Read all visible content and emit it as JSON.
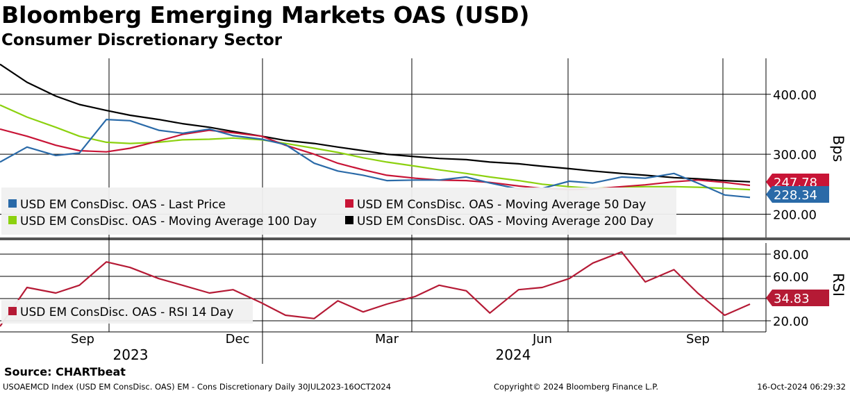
{
  "title": "Bloomberg Emerging Markets OAS (USD)",
  "subtitle": "Consumer Discretionary Sector",
  "source": "Source: CHARTbeat",
  "footer": {
    "left": "USOAEMCD Index (USD EM ConsDisc. OAS) EM - Cons Discretionary  Daily 30JUL2023-16OCT2024",
    "middle": "Copyright© 2024 Bloomberg Finance L.P.",
    "right": "16-Oct-2024 06:29:32"
  },
  "colors": {
    "last_price": "#2a6aa8",
    "ma50": "#c81436",
    "ma100": "#8cd10f",
    "ma200": "#000000",
    "rsi": "#b51a35"
  },
  "chart_data": [
    {
      "type": "line",
      "panel": "upper",
      "ylabel": "Bps",
      "ylim": [
        160,
        460
      ],
      "yticks": [
        "400.00",
        "300.00",
        "200.00"
      ],
      "ytick_values": [
        400,
        300,
        200
      ],
      "x": [
        "2023-07-30",
        "2023-08-15",
        "2023-09-01",
        "2023-09-15",
        "2023-10-01",
        "2023-10-15",
        "2023-11-01",
        "2023-11-15",
        "2023-12-01",
        "2023-12-15",
        "2024-01-01",
        "2024-01-15",
        "2024-02-01",
        "2024-02-15",
        "2024-03-01",
        "2024-03-15",
        "2024-04-01",
        "2024-04-15",
        "2024-05-01",
        "2024-05-15",
        "2024-06-01",
        "2024-06-15",
        "2024-07-01",
        "2024-07-15",
        "2024-08-01",
        "2024-08-15",
        "2024-09-01",
        "2024-09-15",
        "2024-10-01",
        "2024-10-16"
      ],
      "series": [
        {
          "name": "USD EM ConsDisc. OAS - Last Price",
          "values": [
            287,
            312,
            298,
            302,
            358,
            356,
            340,
            335,
            342,
            331,
            325,
            316,
            285,
            272,
            265,
            256,
            257,
            257,
            262,
            252,
            242,
            243,
            255,
            252,
            262,
            260,
            268,
            252,
            232,
            228
          ],
          "last_label": "228.34"
        },
        {
          "name": "USD EM ConsDisc. OAS - Moving Average 50 Day",
          "values": [
            342,
            330,
            315,
            306,
            304,
            310,
            322,
            333,
            340,
            336,
            330,
            315,
            300,
            285,
            274,
            265,
            260,
            257,
            256,
            253,
            247,
            243,
            241,
            242,
            246,
            249,
            254,
            257,
            253,
            248
          ],
          "last_label": "247.78"
        },
        {
          "name": "USD EM ConsDisc. OAS - Moving Average 100 Day",
          "values": [
            382,
            362,
            345,
            330,
            320,
            318,
            320,
            324,
            325,
            327,
            324,
            318,
            310,
            303,
            294,
            287,
            280,
            274,
            268,
            262,
            256,
            250,
            246,
            243,
            245,
            246,
            246,
            245,
            243,
            241
          ]
        },
        {
          "name": "USD EM ConsDisc. OAS - Moving Average 200 Day",
          "values": [
            450,
            420,
            397,
            383,
            373,
            365,
            358,
            351,
            345,
            338,
            330,
            323,
            318,
            312,
            306,
            300,
            296,
            293,
            291,
            287,
            284,
            280,
            276,
            272,
            268,
            265,
            261,
            259,
            256,
            254
          ]
        }
      ]
    },
    {
      "type": "line",
      "panel": "lower",
      "ylabel": "RSI",
      "ylim": [
        10,
        90
      ],
      "yticks": [
        "80.00",
        "60.00",
        "40.00",
        "20.00"
      ],
      "ytick_values": [
        80,
        60,
        40,
        20
      ],
      "x": [
        "2023-07-30",
        "2023-08-15",
        "2023-09-01",
        "2023-09-15",
        "2023-10-01",
        "2023-10-15",
        "2023-11-01",
        "2023-11-15",
        "2023-12-01",
        "2023-12-15",
        "2024-01-01",
        "2024-01-15",
        "2024-02-01",
        "2024-02-15",
        "2024-03-01",
        "2024-03-15",
        "2024-04-01",
        "2024-04-15",
        "2024-05-01",
        "2024-05-15",
        "2024-06-01",
        "2024-06-15",
        "2024-07-01",
        "2024-07-15",
        "2024-08-01",
        "2024-08-15",
        "2024-09-01",
        "2024-09-15",
        "2024-10-01",
        "2024-10-16"
      ],
      "series": [
        {
          "name": "USD EM ConsDisc. OAS - RSI 14 Day",
          "values": [
            15,
            50,
            45,
            52,
            73,
            68,
            58,
            52,
            45,
            48,
            36,
            25,
            22,
            38,
            28,
            35,
            42,
            52,
            47,
            27,
            48,
            50,
            58,
            72,
            82,
            55,
            66,
            45,
            25,
            35
          ],
          "last_label": "34.83"
        }
      ]
    },
    {
      "type": "axis",
      "month_ticks": [
        "Sep",
        "Dec",
        "Mar",
        "Jun",
        "Sep"
      ],
      "year_labels": [
        "2023",
        "2024"
      ]
    }
  ]
}
